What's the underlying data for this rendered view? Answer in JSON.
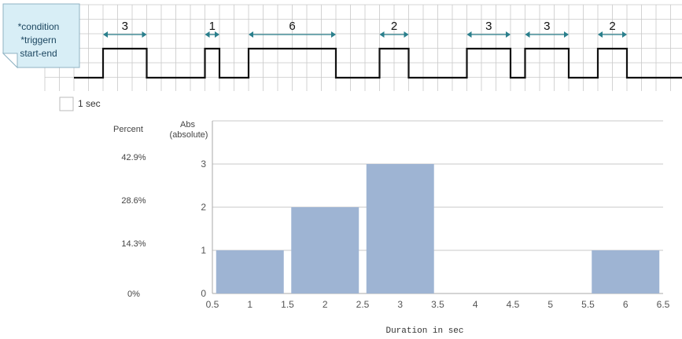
{
  "timeline": {
    "note_lines": [
      "*condition",
      "*triggern",
      "start-end"
    ],
    "scale_label": "1 sec",
    "pulses": [
      {
        "start": 2,
        "end": 5,
        "label": "3"
      },
      {
        "start": 9,
        "end": 10,
        "label": "1"
      },
      {
        "start": 12,
        "end": 18,
        "label": "6"
      },
      {
        "start": 21,
        "end": 23,
        "label": "2"
      },
      {
        "start": 27,
        "end": 30,
        "label": "3"
      },
      {
        "start": 31,
        "end": 34,
        "label": "3"
      },
      {
        "start": 36,
        "end": 38,
        "label": "2"
      }
    ],
    "colors": {
      "signal": "#111111",
      "grid": "#c8c8c8",
      "arrow": "#2a7f8c",
      "note_bg": "#d8eef6",
      "note_border": "#8fb3c3"
    }
  },
  "chart_data": {
    "type": "bar",
    "xlabel": "Duration in sec",
    "ylabel": "Abs\n(absolute)",
    "secondary_ylabel": "Percent",
    "xlim": [
      0.5,
      6.5
    ],
    "ylim": [
      0,
      3
    ],
    "x_ticks": [
      0.5,
      1,
      1.5,
      2,
      2.5,
      3,
      3.5,
      4,
      4.5,
      5,
      5.5,
      6,
      6.5
    ],
    "y_ticks": [
      0,
      1,
      2,
      3
    ],
    "percent_ticks": [
      "0%",
      "14.3%",
      "28.6%",
      "42.9%"
    ],
    "categories": [
      1,
      2,
      3,
      6
    ],
    "values": [
      1,
      2,
      3,
      1
    ],
    "bar_width": 0.9,
    "grid": "horizontal",
    "colors": {
      "bar": "#9eb4d3",
      "grid": "#c9c9c9",
      "axis": "#aaaaaa"
    }
  }
}
